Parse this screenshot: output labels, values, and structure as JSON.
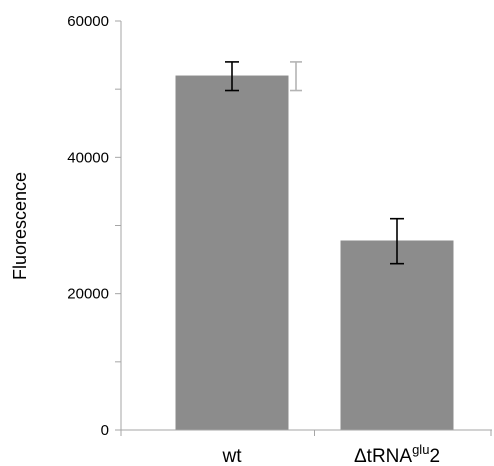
{
  "chart_data": {
    "type": "bar",
    "title": "",
    "xlabel": "",
    "ylabel": "Fluorescence",
    "ylim": [
      0,
      60000
    ],
    "yticks": [
      {
        "value": 0,
        "label": "0"
      },
      {
        "value": 20000,
        "label": "20000"
      },
      {
        "value": 40000,
        "label": "40000"
      },
      {
        "value": 60000,
        "label": "60000"
      }
    ],
    "categories": [
      {
        "main": "wt",
        "sup": "",
        "suffix": ""
      },
      {
        "main": "ΔtRNA",
        "sup": "glu",
        "suffix": "2"
      }
    ],
    "values": [
      52000,
      27800
    ],
    "error_low": [
      49800,
      24400
    ],
    "error_high": [
      54000,
      31000
    ],
    "ghost_error": {
      "category_index": 0,
      "low": 49800,
      "high": 54000
    },
    "bar_color": "#8c8c8c",
    "error_color": "#000000",
    "ghost_error_color": "#b4b4b4",
    "axis_color": "#a6a6a6",
    "grid": false,
    "legend": "none"
  }
}
